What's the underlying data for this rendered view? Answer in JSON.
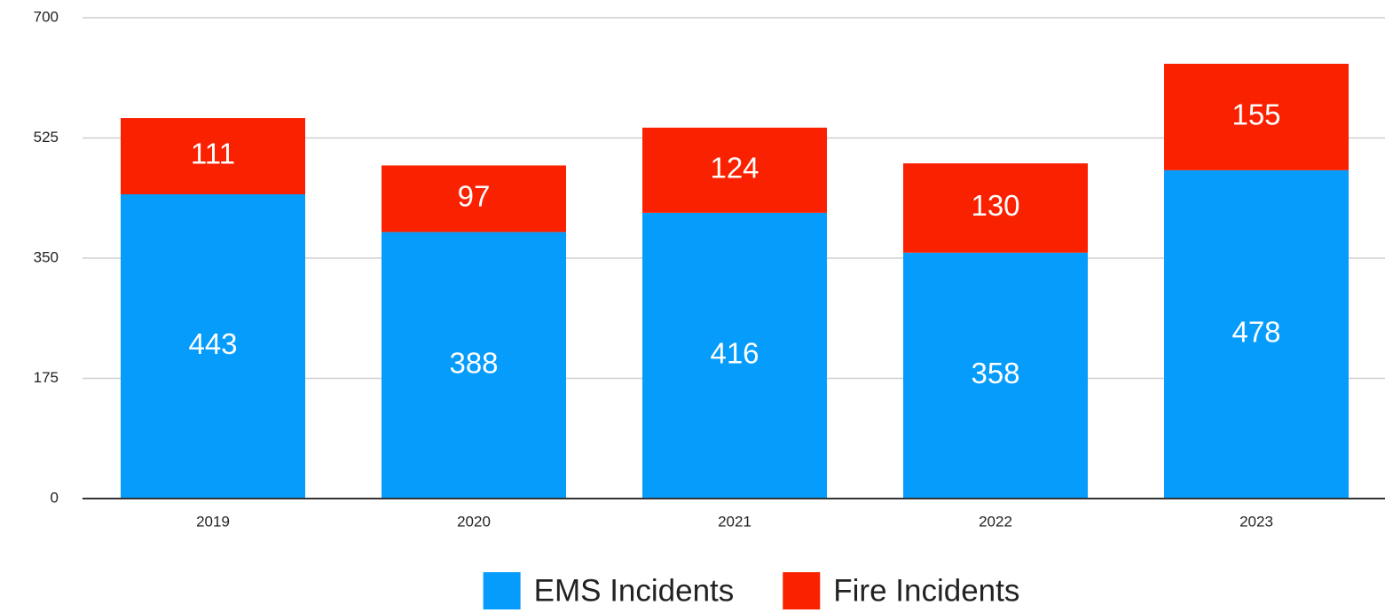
{
  "chart_data": {
    "type": "stacked_bar",
    "categories": [
      "2019",
      "2020",
      "2021",
      "2022",
      "2023"
    ],
    "series": [
      {
        "name": "EMS Incidents",
        "color": "#069cfb",
        "values": [
          443,
          388,
          416,
          358,
          478
        ]
      },
      {
        "name": "Fire Incidents",
        "color": "#fa2100",
        "values": [
          111,
          97,
          124,
          130,
          155
        ]
      }
    ],
    "ylim": [
      0,
      700
    ],
    "yticks": [
      0,
      175,
      350,
      525,
      700
    ],
    "grid": true,
    "legend": "bottom"
  }
}
